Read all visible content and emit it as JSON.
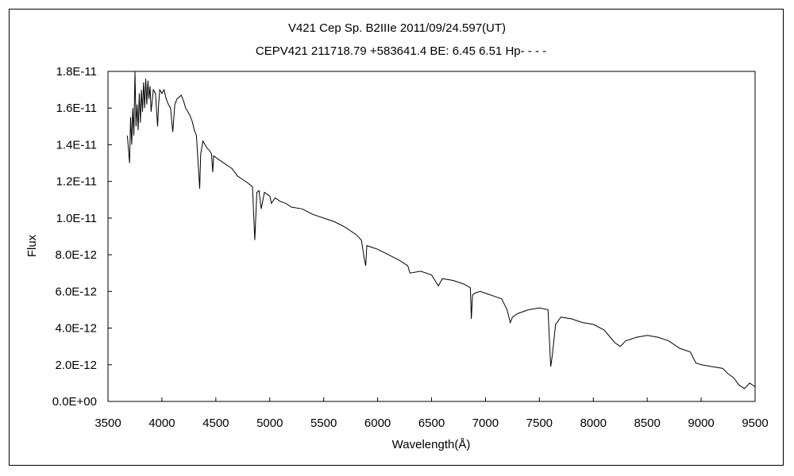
{
  "chart_data": {
    "type": "line",
    "title": "V421 Cep    Sp. B2IIIe    2011/09/24.597(UT)",
    "subtitle": "CEPV421 211718.79 +583641.4 BE: 6.45 6.51 Hp- - - -",
    "xlabel": "Wavelength(Å)",
    "ylabel": "Flux",
    "xlim": [
      3500,
      9500
    ],
    "ylim": [
      0,
      1.8e-11
    ],
    "x_ticks": [
      "3500",
      "4000",
      "4500",
      "5000",
      "5500",
      "6000",
      "6500",
      "7000",
      "7500",
      "8000",
      "8500",
      "9000",
      "9500"
    ],
    "y_ticks": [
      "0.0E+00",
      "2.0E-12",
      "4.0E-12",
      "6.0E-12",
      "8.0E-12",
      "1.0E-11",
      "1.2E-11",
      "1.4E-11",
      "1.6E-11",
      "1.8E-11"
    ],
    "grid": false,
    "legend": "none",
    "line_color": "#000000",
    "series": [
      {
        "x": [
          3680,
          3700,
          3710,
          3720,
          3730,
          3740,
          3750,
          3760,
          3770,
          3780,
          3790,
          3800,
          3810,
          3820,
          3830,
          3840,
          3850,
          3860,
          3870,
          3880,
          3890,
          3900,
          3920,
          3940,
          3960,
          3970,
          3980,
          4000,
          4020,
          4040,
          4060,
          4080,
          4101,
          4120,
          4140,
          4160,
          4180,
          4200,
          4220,
          4240,
          4260,
          4280,
          4300,
          4320,
          4340,
          4350,
          4360,
          4380,
          4400,
          4420,
          4440,
          4460,
          4471,
          4480,
          4500,
          4550,
          4600,
          4650,
          4700,
          4750,
          4800,
          4840,
          4861,
          4880,
          4900,
          4921,
          4950,
          5000,
          5016,
          5050,
          5100,
          5150,
          5200,
          5300,
          5400,
          5500,
          5600,
          5700,
          5800,
          5850,
          5876,
          5890,
          5900,
          5950,
          6000,
          6100,
          6200,
          6280,
          6300,
          6400,
          6500,
          6563,
          6600,
          6700,
          6800,
          6860,
          6869,
          6880,
          6900,
          6950,
          7000,
          7100,
          7150,
          7200,
          7230,
          7250,
          7300,
          7400,
          7500,
          7580,
          7605,
          7620,
          7650,
          7700,
          7800,
          7900,
          8000,
          8100,
          8200,
          8250,
          8300,
          8400,
          8500,
          8600,
          8700,
          8800,
          8900,
          8950,
          9000,
          9100,
          9200,
          9250,
          9300,
          9350,
          9400,
          9450,
          9500
        ],
        "y": [
          1.45e-11,
          1.3e-11,
          1.55e-11,
          1.4e-11,
          1.6e-11,
          1.45e-11,
          1.8e-11,
          1.5e-11,
          1.62e-11,
          1.48e-11,
          1.68e-11,
          1.52e-11,
          1.7e-11,
          1.58e-11,
          1.74e-11,
          1.6e-11,
          1.76e-11,
          1.62e-11,
          1.75e-11,
          1.65e-11,
          1.72e-11,
          1.58e-11,
          1.7e-11,
          1.68e-11,
          1.5e-11,
          1.62e-11,
          1.7e-11,
          1.68e-11,
          1.7e-11,
          1.65e-11,
          1.62e-11,
          1.6e-11,
          1.47e-11,
          1.62e-11,
          1.65e-11,
          1.66e-11,
          1.67e-11,
          1.64e-11,
          1.6e-11,
          1.58e-11,
          1.56e-11,
          1.53e-11,
          1.48e-11,
          1.45e-11,
          1.26e-11,
          1.16e-11,
          1.35e-11,
          1.42e-11,
          1.4e-11,
          1.38e-11,
          1.37e-11,
          1.35e-11,
          1.25e-11,
          1.34e-11,
          1.33e-11,
          1.31e-11,
          1.29e-11,
          1.27e-11,
          1.23e-11,
          1.21e-11,
          1.19e-11,
          1.17e-11,
          8.8e-12,
          1.14e-11,
          1.15e-11,
          1.05e-11,
          1.14e-11,
          1.12e-11,
          1.08e-11,
          1.11e-11,
          1.09e-11,
          1.08e-11,
          1.06e-11,
          1.05e-11,
          1.02e-11,
          1e-11,
          9.8e-12,
          9.5e-12,
          9.1e-12,
          8.8e-12,
          7.8e-12,
          7.4e-12,
          8.5e-12,
          8.4e-12,
          8.3e-12,
          8e-12,
          7.7e-12,
          7.4e-12,
          7e-12,
          7.1e-12,
          6.9e-12,
          6.3e-12,
          6.7e-12,
          6.6e-12,
          6.4e-12,
          6.2e-12,
          4.5e-12,
          5.8e-12,
          5.9e-12,
          6e-12,
          5.9e-12,
          5.7e-12,
          5.6e-12,
          5e-12,
          4.3e-12,
          4.6e-12,
          4.8e-12,
          5e-12,
          5.1e-12,
          5e-12,
          1.9e-12,
          2.5e-12,
          4.2e-12,
          4.6e-12,
          4.5e-12,
          4.3e-12,
          4.2e-12,
          3.9e-12,
          3.2e-12,
          3e-12,
          3.3e-12,
          3.5e-12,
          3.6e-12,
          3.5e-12,
          3.3e-12,
          2.9e-12,
          2.7e-12,
          2.1e-12,
          2e-12,
          1.9e-12,
          1.8e-12,
          1.5e-12,
          1.3e-12,
          9e-13,
          7e-13,
          1e-12,
          8e-13
        ]
      }
    ]
  }
}
